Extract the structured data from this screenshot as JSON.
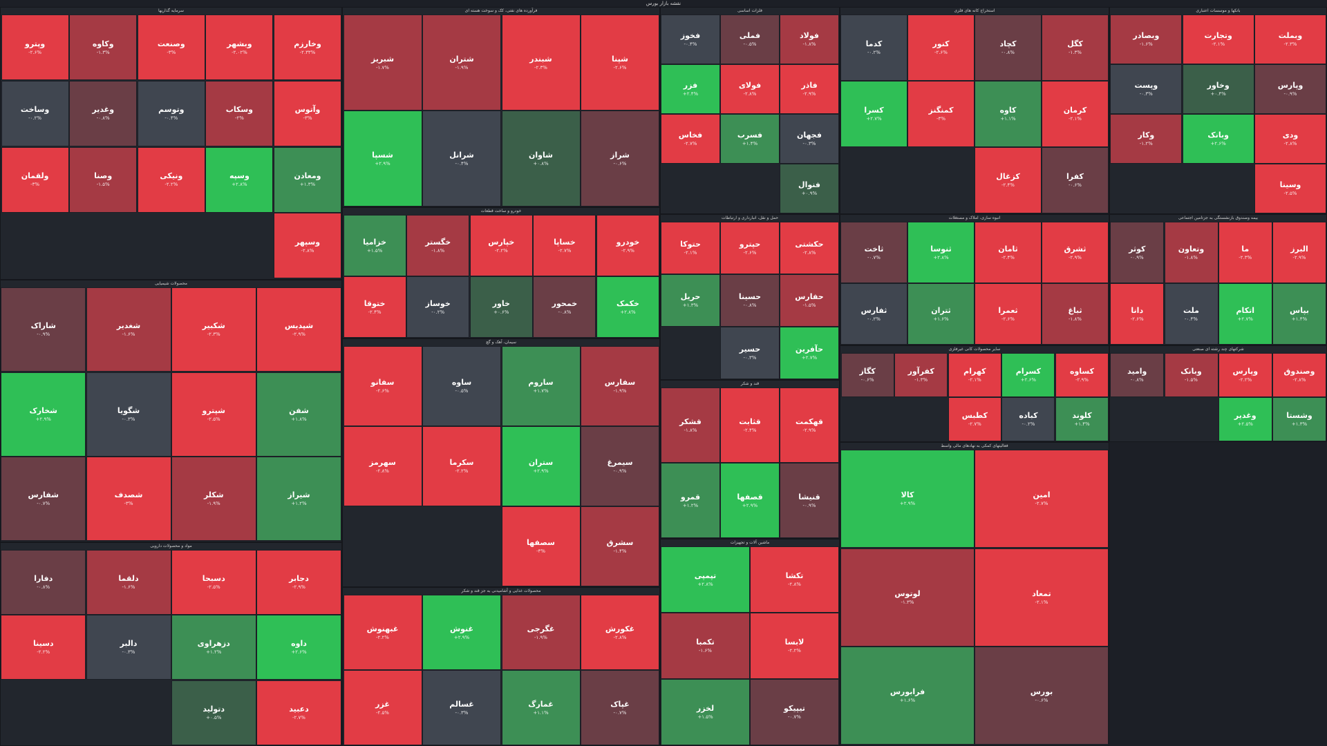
{
  "page": {
    "title": "نقشه بازار بورس"
  },
  "colors": {
    "up_strong": "#2fbf56",
    "up_mid": "#3d8f55",
    "up_weak": "#3b5f49",
    "flat": "#404650",
    "down_weak": "#6a3e46",
    "down_mid": "#a53a44",
    "down_strong": "#e23c45",
    "background": "#1c1f26"
  },
  "sectors": [
    {
      "name": "سرمایه گذاریها",
      "tiles": [
        {
          "s": "وخارزم",
          "p": "-۲.۳۳%",
          "c": "down_strong"
        },
        {
          "s": "وبشهر",
          "p": "-۲.۰۲%",
          "c": "down_strong"
        },
        {
          "s": "وصنعت",
          "p": "-۳%",
          "c": "down_strong"
        },
        {
          "s": "وکاوه",
          "p": "-۱.۳%",
          "c": "down_mid"
        },
        {
          "s": "وپترو",
          "p": "-۲.۶%",
          "c": "down_strong"
        },
        {
          "s": "وآتوس",
          "p": "-۳%",
          "c": "down_strong"
        },
        {
          "s": "وسکاب",
          "p": "-۲%",
          "c": "down_mid"
        },
        {
          "s": "وتوسم",
          "p": "-۰.۴%",
          "c": "flat"
        },
        {
          "s": "وغدیر",
          "p": "-۰.۸%",
          "c": "down_weak"
        },
        {
          "s": "وساخت",
          "p": "-۰.۲%",
          "c": "flat"
        },
        {
          "s": "ومعادن",
          "p": "+۱.۳%",
          "c": "up_mid"
        },
        {
          "s": "وسپه",
          "p": "+۲.۸%",
          "c": "up_strong"
        },
        {
          "s": "ونیکی",
          "p": "-۲.۲%",
          "c": "down_strong"
        },
        {
          "s": "وصنا",
          "p": "-۱.۵%",
          "c": "down_mid"
        },
        {
          "s": "ولقمان",
          "p": "-۳%",
          "c": "down_strong"
        },
        {
          "s": "وسپهر",
          "p": "-۲.۸%",
          "c": "down_strong"
        }
      ]
    },
    {
      "name": "فرآورده های نفتی، کک و سوخت هسته ای",
      "tiles": [
        {
          "s": "شپنا",
          "p": "-۲.۶%",
          "c": "down_strong"
        },
        {
          "s": "شبندر",
          "p": "-۲.۳%",
          "c": "down_strong"
        },
        {
          "s": "شتران",
          "p": "-۱.۹%",
          "c": "down_mid"
        },
        {
          "s": "شبریز",
          "p": "-۱.۷%",
          "c": "down_mid"
        },
        {
          "s": "شراز",
          "p": "-۰.۶%",
          "c": "down_weak"
        },
        {
          "s": "شاوان",
          "p": "+۰.۸%",
          "c": "up_weak"
        },
        {
          "s": "شرانل",
          "p": "-۰.۴%",
          "c": "flat"
        },
        {
          "s": "شسپا",
          "p": "+۲.۹%",
          "c": "up_strong"
        }
      ]
    },
    {
      "name": "محصولات شیمیایی",
      "tiles": [
        {
          "s": "شپدیس",
          "p": "-۲.۹%",
          "c": "down_strong"
        },
        {
          "s": "شکبیر",
          "p": "-۲.۳%",
          "c": "down_strong"
        },
        {
          "s": "شغدیر",
          "p": "-۱.۶%",
          "c": "down_mid"
        },
        {
          "s": "شاراک",
          "p": "-۰.۹%",
          "c": "down_weak"
        },
        {
          "s": "شفن",
          "p": "+۱.۸%",
          "c": "up_mid"
        },
        {
          "s": "شپترو",
          "p": "-۲.۵%",
          "c": "down_strong"
        },
        {
          "s": "شگویا",
          "p": "-۰.۳%",
          "c": "flat"
        },
        {
          "s": "شخارک",
          "p": "+۲.۹%",
          "c": "up_strong"
        },
        {
          "s": "شیراز",
          "p": "+۱.۲%",
          "c": "up_mid"
        },
        {
          "s": "شکلر",
          "p": "-۱.۹%",
          "c": "down_mid"
        },
        {
          "s": "شصدف",
          "p": "-۳%",
          "c": "down_strong"
        },
        {
          "s": "شفارس",
          "p": "-۰.۷%",
          "c": "down_weak"
        }
      ]
    },
    {
      "name": "فلزات اساسی",
      "tiles": [
        {
          "s": "فولاد",
          "p": "-۱.۸%",
          "c": "down_mid"
        },
        {
          "s": "فملی",
          "p": "-۰.۵%",
          "c": "down_weak"
        },
        {
          "s": "فخوز",
          "p": "-۰.۴%",
          "c": "flat"
        },
        {
          "s": "فاذر",
          "p": "-۲.۹%",
          "c": "down_strong"
        },
        {
          "s": "فولای",
          "p": "-۲.۸%",
          "c": "down_strong"
        },
        {
          "s": "فزر",
          "p": "+۲.۴%",
          "c": "up_strong"
        },
        {
          "s": "فجهان",
          "p": "-۰.۳%",
          "c": "flat"
        },
        {
          "s": "فسرب",
          "p": "+۱.۴%",
          "c": "up_mid"
        },
        {
          "s": "فخاس",
          "p": "-۲.۷%",
          "c": "down_strong"
        },
        {
          "s": "فنوال",
          "p": "+۰.۹%",
          "c": "up_weak"
        }
      ]
    },
    {
      "name": "استخراج کانه های فلزی",
      "tiles": [
        {
          "s": "کگل",
          "p": "-۱.۳%",
          "c": "down_mid"
        },
        {
          "s": "کچاد",
          "p": "-۰.۸%",
          "c": "down_weak"
        },
        {
          "s": "کنور",
          "p": "-۲.۶%",
          "c": "down_strong"
        },
        {
          "s": "کدما",
          "p": "-۰.۲%",
          "c": "flat"
        },
        {
          "s": "کرمان",
          "p": "-۲.۱%",
          "c": "down_strong"
        },
        {
          "s": "کاوه",
          "p": "+۱.۱%",
          "c": "up_mid"
        },
        {
          "s": "کمنگنز",
          "p": "-۳%",
          "c": "down_strong"
        },
        {
          "s": "کسرا",
          "p": "+۲.۷%",
          "c": "up_strong"
        },
        {
          "s": "کفرا",
          "p": "-۰.۶%",
          "c": "down_weak"
        },
        {
          "s": "کزغال",
          "p": "-۲.۴%",
          "c": "down_strong"
        }
      ]
    },
    {
      "name": "بانکها و موسسات اعتباری",
      "tiles": [
        {
          "s": "وبملت",
          "p": "-۲.۳%",
          "c": "down_strong"
        },
        {
          "s": "وتجارت",
          "p": "-۲.۱%",
          "c": "down_strong"
        },
        {
          "s": "وبصادر",
          "p": "-۱.۶%",
          "c": "down_mid"
        },
        {
          "s": "وپارس",
          "p": "-۰.۹%",
          "c": "down_weak"
        },
        {
          "s": "وخاور",
          "p": "+۰.۴%",
          "c": "up_weak"
        },
        {
          "s": "وپست",
          "p": "-۰.۳%",
          "c": "flat"
        },
        {
          "s": "ودی",
          "p": "-۲.۸%",
          "c": "down_strong"
        },
        {
          "s": "وبانک",
          "p": "+۲.۶%",
          "c": "up_strong"
        },
        {
          "s": "وکار",
          "p": "-۱.۲%",
          "c": "down_mid"
        },
        {
          "s": "وسینا",
          "p": "-۲.۵%",
          "c": "down_strong"
        }
      ]
    },
    {
      "name": "خودرو و ساخت قطعات",
      "tiles": [
        {
          "s": "خودرو",
          "p": "-۲.۹%",
          "c": "down_strong"
        },
        {
          "s": "خساپا",
          "p": "-۲.۷%",
          "c": "down_strong"
        },
        {
          "s": "خپارس",
          "p": "-۲.۲%",
          "c": "down_strong"
        },
        {
          "s": "خگستر",
          "p": "-۱.۸%",
          "c": "down_mid"
        },
        {
          "s": "خزامیا",
          "p": "+۱.۵%",
          "c": "up_mid"
        },
        {
          "s": "خکمک",
          "p": "+۲.۸%",
          "c": "up_strong"
        },
        {
          "s": "خمحور",
          "p": "-۰.۸%",
          "c": "down_weak"
        },
        {
          "s": "خاور",
          "p": "+۰.۶%",
          "c": "up_weak"
        },
        {
          "s": "خوساز",
          "p": "-۰.۲%",
          "c": "flat"
        },
        {
          "s": "ختوقا",
          "p": "-۲.۴%",
          "c": "down_strong"
        }
      ]
    },
    {
      "name": "سیمان، آهک و گچ",
      "tiles": [
        {
          "s": "سفارس",
          "p": "-۱.۹%",
          "c": "down_mid"
        },
        {
          "s": "ساروم",
          "p": "+۱.۷%",
          "c": "up_mid"
        },
        {
          "s": "ساوه",
          "p": "-۰.۵%",
          "c": "flat"
        },
        {
          "s": "سفانو",
          "p": "-۲.۶%",
          "c": "down_strong"
        },
        {
          "s": "سیمرغ",
          "p": "-۰.۹%",
          "c": "down_weak"
        },
        {
          "s": "ستران",
          "p": "+۲.۹%",
          "c": "up_strong"
        },
        {
          "s": "سکرما",
          "p": "-۲.۲%",
          "c": "down_strong"
        },
        {
          "s": "سهرمز",
          "p": "-۲.۸%",
          "c": "down_strong"
        },
        {
          "s": "سشرق",
          "p": "-۱.۴%",
          "c": "down_mid"
        },
        {
          "s": "سصفها",
          "p": "-۳%",
          "c": "down_strong"
        }
      ]
    },
    {
      "name": "مواد و محصولات دارویی",
      "tiles": [
        {
          "s": "دجابر",
          "p": "-۲.۹%",
          "c": "down_strong"
        },
        {
          "s": "دسبحا",
          "p": "-۲.۵%",
          "c": "down_strong"
        },
        {
          "s": "دلقما",
          "p": "-۱.۶%",
          "c": "down_mid"
        },
        {
          "s": "دفارا",
          "p": "-۰.۸%",
          "c": "down_weak"
        },
        {
          "s": "داوه",
          "p": "+۲.۶%",
          "c": "up_strong"
        },
        {
          "s": "دزهراوی",
          "p": "+۱.۲%",
          "c": "up_mid"
        },
        {
          "s": "دالبر",
          "p": "-۰.۳%",
          "c": "flat"
        },
        {
          "s": "دسینا",
          "p": "-۲.۲%",
          "c": "down_strong"
        },
        {
          "s": "دعبید",
          "p": "-۲.۷%",
          "c": "down_strong"
        },
        {
          "s": "دتولید",
          "p": "+۰.۵%",
          "c": "up_weak"
        }
      ]
    },
    {
      "name": "حمل و نقل، انبارداری و ارتباطات",
      "tiles": [
        {
          "s": "حکشتی",
          "p": "-۲.۸%",
          "c": "down_strong"
        },
        {
          "s": "حپترو",
          "p": "-۲.۶%",
          "c": "down_strong"
        },
        {
          "s": "حتوکا",
          "p": "-۲.۱%",
          "c": "down_strong"
        },
        {
          "s": "حفارس",
          "p": "-۱.۵%",
          "c": "down_mid"
        },
        {
          "s": "حسینا",
          "p": "-۰.۸%",
          "c": "down_weak"
        },
        {
          "s": "حریل",
          "p": "+۱.۳%",
          "c": "up_mid"
        },
        {
          "s": "حآفرین",
          "p": "+۲.۷%",
          "c": "up_strong"
        },
        {
          "s": "حسیر",
          "p": "-۰.۳%",
          "c": "flat"
        }
      ]
    },
    {
      "name": "انبوه سازی، املاک و مستغلات",
      "tiles": [
        {
          "s": "ثشرق",
          "p": "-۲.۹%",
          "c": "down_strong"
        },
        {
          "s": "ثامان",
          "p": "-۲.۴%",
          "c": "down_strong"
        },
        {
          "s": "ثنوسا",
          "p": "+۲.۸%",
          "c": "up_strong"
        },
        {
          "s": "ثاخت",
          "p": "-۰.۷%",
          "c": "down_weak"
        },
        {
          "s": "ثباغ",
          "p": "-۱.۸%",
          "c": "down_mid"
        },
        {
          "s": "ثعمرا",
          "p": "-۲.۶%",
          "c": "down_strong"
        },
        {
          "s": "ثتران",
          "p": "+۱.۶%",
          "c": "up_mid"
        },
        {
          "s": "ثفارس",
          "p": "-۰.۲%",
          "c": "flat"
        }
      ]
    },
    {
      "name": "بیمه وصندوق بازنشستگی به جزتامین اجتماعی",
      "tiles": [
        {
          "s": "البرز",
          "p": "-۲.۹%",
          "c": "down_strong"
        },
        {
          "s": "ما",
          "p": "-۲.۳%",
          "c": "down_strong"
        },
        {
          "s": "وتعاون",
          "p": "-۱.۸%",
          "c": "down_mid"
        },
        {
          "s": "کوثر",
          "p": "-۰.۹%",
          "c": "down_weak"
        },
        {
          "s": "بپاس",
          "p": "+۱.۴%",
          "c": "up_mid"
        },
        {
          "s": "اتکام",
          "p": "+۲.۷%",
          "c": "up_strong"
        },
        {
          "s": "ملت",
          "p": "-۰.۴%",
          "c": "flat"
        },
        {
          "s": "دانا",
          "p": "-۲.۶%",
          "c": "down_strong"
        }
      ]
    },
    {
      "name": "محصولات غذایی و آشامیدنی به جز قند و شکر",
      "tiles": [
        {
          "s": "غکورش",
          "p": "-۲.۸%",
          "c": "down_strong"
        },
        {
          "s": "غگرجی",
          "p": "-۱.۹%",
          "c": "down_mid"
        },
        {
          "s": "غنوش",
          "p": "+۲.۹%",
          "c": "up_strong"
        },
        {
          "s": "غبهنوش",
          "p": "-۲.۲%",
          "c": "down_strong"
        },
        {
          "s": "غپاک",
          "p": "-۰.۷%",
          "c": "down_weak"
        },
        {
          "s": "غمارگ",
          "p": "+۱.۱%",
          "c": "up_mid"
        },
        {
          "s": "غسالم",
          "p": "-۰.۳%",
          "c": "flat"
        },
        {
          "s": "غزر",
          "p": "-۲.۵%",
          "c": "down_strong"
        }
      ]
    },
    {
      "name": "سایر محصولات کانی غیرفلزی",
      "tiles": [
        {
          "s": "کساوه",
          "p": "-۲.۹%",
          "c": "down_strong"
        },
        {
          "s": "کسرام",
          "p": "+۲.۶%",
          "c": "up_strong"
        },
        {
          "s": "کهرام",
          "p": "-۲.۱%",
          "c": "down_strong"
        },
        {
          "s": "کفرآور",
          "p": "-۱.۳%",
          "c": "down_mid"
        },
        {
          "s": "کگاز",
          "p": "-۰.۶%",
          "c": "down_weak"
        },
        {
          "s": "کلوند",
          "p": "+۱.۴%",
          "c": "up_mid"
        },
        {
          "s": "کباده",
          "p": "-۰.۲%",
          "c": "flat"
        },
        {
          "s": "کطبس",
          "p": "-۲.۷%",
          "c": "down_strong"
        }
      ]
    },
    {
      "name": "شرکتهای چند رشته ای صنعتی",
      "tiles": [
        {
          "s": "وصندوق",
          "p": "-۲.۸%",
          "c": "down_strong"
        },
        {
          "s": "وپارس",
          "p": "-۲.۲%",
          "c": "down_strong"
        },
        {
          "s": "وبانک",
          "p": "-۱.۵%",
          "c": "down_mid"
        },
        {
          "s": "وامید",
          "p": "-۰.۸%",
          "c": "down_weak"
        },
        {
          "s": "وشستا",
          "p": "+۱.۳%",
          "c": "up_mid"
        },
        {
          "s": "وغدیر",
          "p": "+۲.۵%",
          "c": "up_strong"
        }
      ]
    },
    {
      "name": "قند و شکر",
      "tiles": [
        {
          "s": "قهکمت",
          "p": "-۲.۹%",
          "c": "down_strong"
        },
        {
          "s": "قثابت",
          "p": "-۲.۴%",
          "c": "down_strong"
        },
        {
          "s": "قشکر",
          "p": "-۱.۸%",
          "c": "down_mid"
        },
        {
          "s": "قنیشا",
          "p": "-۰.۹%",
          "c": "down_weak"
        },
        {
          "s": "قصفها",
          "p": "+۲.۹%",
          "c": "up_strong"
        },
        {
          "s": "قمرو",
          "p": "+۱.۲%",
          "c": "up_mid"
        }
      ]
    },
    {
      "name": "ماشین آلات و تجهیزات",
      "tiles": [
        {
          "s": "تکشا",
          "p": "-۲.۸%",
          "c": "down_strong"
        },
        {
          "s": "تپمپی",
          "p": "+۲.۸%",
          "c": "up_strong"
        },
        {
          "s": "لابسا",
          "p": "-۲.۲%",
          "c": "down_strong"
        },
        {
          "s": "تکمبا",
          "p": "-۱.۶%",
          "c": "down_mid"
        },
        {
          "s": "تیپیکو",
          "p": "-۰.۷%",
          "c": "down_weak"
        },
        {
          "s": "لخزر",
          "p": "+۱.۵%",
          "c": "up_mid"
        }
      ]
    },
    {
      "name": "فعالیتهای کمکی به نهادهای مالی واسط",
      "tiles": [
        {
          "s": "امین",
          "p": "-۲.۷%",
          "c": "down_strong"
        },
        {
          "s": "کالا",
          "p": "+۲.۹%",
          "c": "up_strong"
        },
        {
          "s": "تمعاد",
          "p": "-۲.۱%",
          "c": "down_strong"
        },
        {
          "s": "لوتوس",
          "p": "-۱.۳%",
          "c": "down_mid"
        },
        {
          "s": "بورس",
          "p": "-۰.۶%",
          "c": "down_weak"
        },
        {
          "s": "فرابورس",
          "p": "+۱.۶%",
          "c": "up_mid"
        }
      ]
    }
  ]
}
